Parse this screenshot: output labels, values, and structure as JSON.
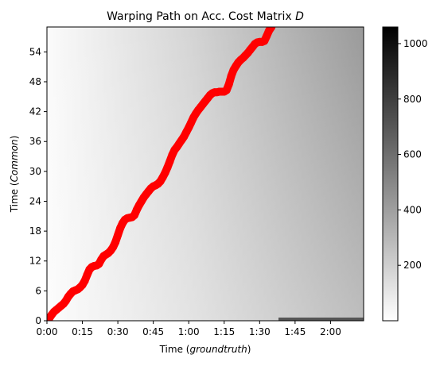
{
  "chart_data": {
    "type": "heatmap",
    "title": "Warping Path on Acc. Cost Matrix",
    "title_math": "D",
    "xlabel_prefix": "Time (",
    "xlabel_italic": "groundtruth",
    "xlabel_suffix": ")",
    "ylabel_prefix": "Time (",
    "ylabel_italic": "Common",
    "ylabel_suffix": ")",
    "x_unit": "seconds",
    "xlim": [
      0,
      134
    ],
    "ylim": [
      0,
      59
    ],
    "x_ticks": [
      {
        "value": 0,
        "label": "0:00"
      },
      {
        "value": 15,
        "label": "0:15"
      },
      {
        "value": 30,
        "label": "0:30"
      },
      {
        "value": 45,
        "label": "0:45"
      },
      {
        "value": 60,
        "label": "1:00"
      },
      {
        "value": 75,
        "label": "1:15"
      },
      {
        "value": 90,
        "label": "1:30"
      },
      {
        "value": 105,
        "label": "1:45"
      },
      {
        "value": 120,
        "label": "2:00"
      }
    ],
    "y_ticks": [
      0,
      6,
      12,
      18,
      24,
      30,
      36,
      42,
      48,
      54
    ],
    "colormap": "gray_r",
    "colorbar": {
      "min": 0,
      "max": 1060,
      "ticks": [
        200,
        400,
        600,
        800,
        1000
      ]
    },
    "path_color": "#ff0000",
    "path": [
      [
        0,
        0
      ],
      [
        1,
        0.5
      ],
      [
        2,
        1.2
      ],
      [
        3,
        1.8
      ],
      [
        4,
        2.2
      ],
      [
        5,
        2.6
      ],
      [
        6,
        3.0
      ],
      [
        7,
        3.4
      ],
      [
        8,
        4.0
      ],
      [
        9,
        4.8
      ],
      [
        10,
        5.4
      ],
      [
        11,
        5.9
      ],
      [
        12,
        6.1
      ],
      [
        13,
        6.3
      ],
      [
        14,
        6.7
      ],
      [
        15,
        7.2
      ],
      [
        16,
        8.0
      ],
      [
        17,
        9.2
      ],
      [
        18,
        10.3
      ],
      [
        19,
        10.8
      ],
      [
        20,
        11.0
      ],
      [
        21,
        11.1
      ],
      [
        22,
        11.4
      ],
      [
        23,
        12.3
      ],
      [
        24,
        13.0
      ],
      [
        25,
        13.3
      ],
      [
        26,
        13.6
      ],
      [
        27,
        14.1
      ],
      [
        28,
        14.8
      ],
      [
        29,
        15.8
      ],
      [
        30,
        17.2
      ],
      [
        31,
        18.6
      ],
      [
        32,
        19.6
      ],
      [
        33,
        20.3
      ],
      [
        34,
        20.6
      ],
      [
        35,
        20.7
      ],
      [
        36,
        20.8
      ],
      [
        37,
        21.2
      ],
      [
        38,
        22.3
      ],
      [
        39,
        23.2
      ],
      [
        40,
        24.0
      ],
      [
        41,
        24.8
      ],
      [
        42,
        25.4
      ],
      [
        43,
        26.0
      ],
      [
        44,
        26.6
      ],
      [
        45,
        27.0
      ],
      [
        46,
        27.2
      ],
      [
        47,
        27.5
      ],
      [
        48,
        28.0
      ],
      [
        49,
        28.8
      ],
      [
        50,
        29.7
      ],
      [
        51,
        30.8
      ],
      [
        52,
        32.0
      ],
      [
        53,
        33.3
      ],
      [
        54,
        34.3
      ],
      [
        55,
        34.9
      ],
      [
        56,
        35.6
      ],
      [
        57,
        36.3
      ],
      [
        58,
        37.0
      ],
      [
        59,
        37.9
      ],
      [
        60,
        38.8
      ],
      [
        61,
        39.8
      ],
      [
        62,
        40.8
      ],
      [
        63,
        41.6
      ],
      [
        64,
        42.3
      ],
      [
        65,
        42.9
      ],
      [
        66,
        43.5
      ],
      [
        67,
        44.1
      ],
      [
        68,
        44.7
      ],
      [
        69,
        45.3
      ],
      [
        70,
        45.7
      ],
      [
        71,
        45.9
      ],
      [
        72,
        45.9
      ],
      [
        73,
        46.0
      ],
      [
        74,
        46.0
      ],
      [
        75,
        46.0
      ],
      [
        76,
        46.3
      ],
      [
        77,
        47.5
      ],
      [
        78,
        49.2
      ],
      [
        79,
        50.4
      ],
      [
        80,
        51.2
      ],
      [
        81,
        51.9
      ],
      [
        82,
        52.4
      ],
      [
        83,
        52.8
      ],
      [
        84,
        53.3
      ],
      [
        85,
        53.8
      ],
      [
        86,
        54.4
      ],
      [
        87,
        55.0
      ],
      [
        88,
        55.6
      ],
      [
        89,
        55.9
      ],
      [
        90,
        56.0
      ],
      [
        91,
        56.0
      ],
      [
        92,
        56.2
      ],
      [
        93,
        57.2
      ],
      [
        94,
        58.3
      ],
      [
        95,
        59.0
      ]
    ]
  }
}
